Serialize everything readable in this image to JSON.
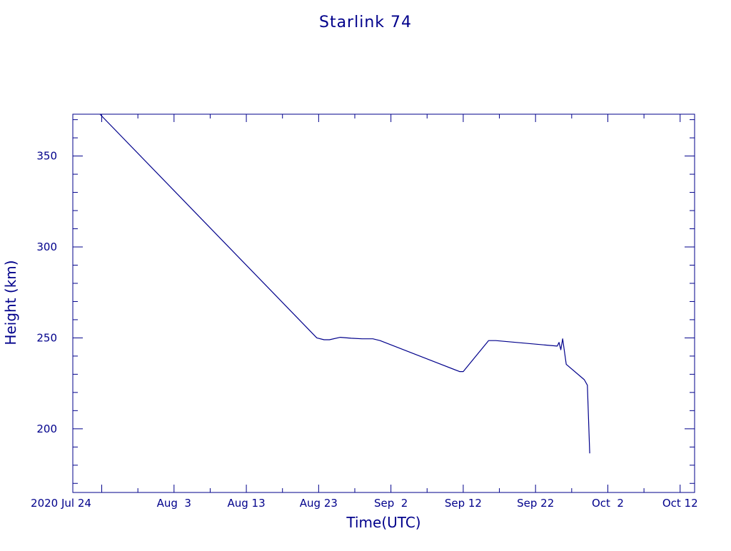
{
  "colors": {
    "ink": "#00008b",
    "background": "#ffffff"
  },
  "chart_data": {
    "type": "line",
    "title": "Starlink 74",
    "xlabel": "Time(UTC)",
    "ylabel": "Height (km)",
    "x_is_date": true,
    "xlim": [
      "2020-07-20",
      "2020-10-14"
    ],
    "ylim": [
      165,
      373
    ],
    "grid": false,
    "legend": "none",
    "x_ticks": [
      {
        "date": "2020-07-24",
        "label": "2020 Jul 24"
      },
      {
        "date": "2020-08-03",
        "label": "Aug  3"
      },
      {
        "date": "2020-08-13",
        "label": "Aug 13"
      },
      {
        "date": "2020-08-23",
        "label": "Aug 23"
      },
      {
        "date": "2020-09-02",
        "label": "Sep  2"
      },
      {
        "date": "2020-09-12",
        "label": "Sep 12"
      },
      {
        "date": "2020-09-22",
        "label": "Sep 22"
      },
      {
        "date": "2020-10-02",
        "label": "Oct  2"
      },
      {
        "date": "2020-10-12",
        "label": "Oct 12"
      }
    ],
    "y_ticks": [
      {
        "value": 200,
        "label": "200"
      },
      {
        "value": 250,
        "label": "250"
      },
      {
        "value": 300,
        "label": "300"
      },
      {
        "value": 350,
        "label": "350"
      }
    ],
    "series": [
      {
        "x": [
          "2020-07-23T18:00",
          "2020-08-22T18:00",
          "2020-08-23T18:00",
          "2020-08-24T12:00",
          "2020-08-26T00:00",
          "2020-08-27T12:00",
          "2020-08-29T00:00",
          "2020-08-30T12:00",
          "2020-08-31T12:00",
          "2020-09-11T12:00",
          "2020-09-12T00:00",
          "2020-09-15T12:00",
          "2020-09-16T12:00",
          "2020-09-25T00:00",
          "2020-09-25T06:00",
          "2020-09-25T12:00",
          "2020-09-25T18:00",
          "2020-09-26T06:00",
          "2020-09-28T18:00",
          "2020-09-29T04:00",
          "2020-09-29T12:00"
        ],
        "y": [
          373,
          250,
          249,
          249,
          250.3,
          249.8,
          249.5,
          249.5,
          248.5,
          231.5,
          231.5,
          248.5,
          248.5,
          245.5,
          247.5,
          243.5,
          249.5,
          235.5,
          227,
          224,
          186.5
        ]
      }
    ]
  }
}
